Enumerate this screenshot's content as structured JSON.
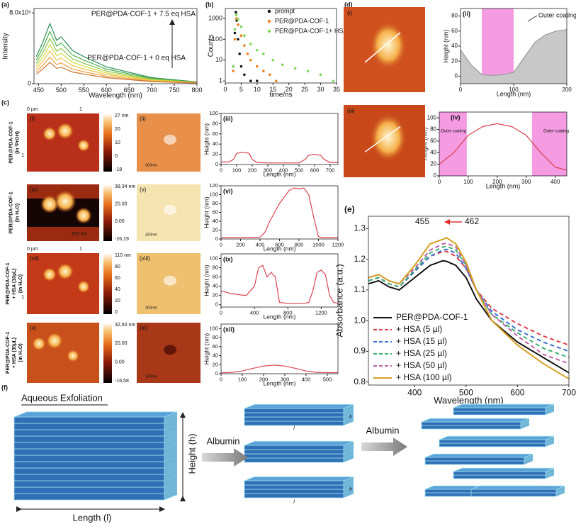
{
  "chart_data": [
    {
      "type": "line",
      "panel": "(a)",
      "xlabel": "Wavelength (nm)",
      "ylabel": "Intensity",
      "xlim": [
        440,
        800
      ],
      "ylim": [
        0,
        850000
      ],
      "xticks": [
        450,
        500,
        550,
        600,
        650,
        700,
        750,
        800
      ],
      "yticks": [
        0,
        {
          "value": 800000,
          "label": "8.0x10⁵"
        }
      ],
      "x": [
        445,
        460,
        475,
        490,
        500,
        525,
        550,
        600,
        700,
        800
      ],
      "series": [
        {
          "color": "#2e8b57",
          "values": [
            306000,
            476000,
            680000,
            490000,
            530000,
            374000,
            306000,
            190000,
            68000,
            20000
          ]
        },
        {
          "color": "#4caf50",
          "values": [
            266000,
            413000,
            590000,
            425000,
            460000,
            325000,
            266000,
            165000,
            59000,
            18000
          ]
        },
        {
          "color": "#8bc34a",
          "values": [
            230000,
            357000,
            510000,
            367000,
            398000,
            281000,
            230000,
            143000,
            51000,
            15000
          ]
        },
        {
          "color": "#cddc39",
          "values": [
            198000,
            308000,
            440000,
            317000,
            343000,
            242000,
            198000,
            123000,
            44000,
            13000
          ]
        },
        {
          "color": "#f0c040",
          "values": [
            167000,
            259000,
            370000,
            266000,
            289000,
            204000,
            167000,
            104000,
            37000,
            11000
          ]
        },
        {
          "color": "#f0a040",
          "values": [
            135000,
            210000,
            300000,
            216000,
            234000,
            165000,
            135000,
            84000,
            30000,
            9000
          ]
        },
        {
          "color": "#c87533",
          "values": [
            108000,
            168000,
            240000,
            173000,
            187000,
            132000,
            108000,
            67000,
            24000,
            7000
          ]
        }
      ],
      "annotations": [
        {
          "text": "PER@PDA-COF-1 + 7.5 eq HSA",
          "color": "#2e8b57"
        },
        {
          "text": "PER@PDA-COF-1 + 0 eq HSA",
          "color": "#c87533"
        }
      ]
    },
    {
      "type": "scatter",
      "panel": "(b)",
      "xlabel": "time/ns",
      "ylabel": "Counts",
      "log_y": true,
      "xlim": [
        0,
        35
      ],
      "ylim": [
        0.8,
        3000
      ],
      "xticks": [
        0,
        5,
        10,
        15,
        20,
        25,
        30,
        35
      ],
      "yticks": [
        1,
        10,
        100,
        1000
      ],
      "legend": true,
      "series": [
        {
          "name": "prompt",
          "color": "#111111",
          "x": [
            2.5,
            3,
            3.3,
            3.6,
            4,
            4.5,
            5,
            6,
            8,
            10
          ],
          "values": [
            5,
            200,
            2000,
            800,
            100,
            20,
            5,
            2,
            1,
            1
          ]
        },
        {
          "name": "PER@PDA-COF-1",
          "color": "#f07f1e",
          "x": [
            2.5,
            3,
            3.5,
            4,
            5,
            6,
            7,
            8,
            10,
            12,
            14,
            16
          ],
          "values": [
            3,
            100,
            1000,
            500,
            150,
            50,
            20,
            10,
            5,
            3,
            2,
            1
          ]
        },
        {
          "name": "PER@PDA-COF-1+ HSA",
          "color": "#7ed957",
          "x": [
            2.5,
            3,
            3.5,
            4,
            5,
            6,
            8,
            10,
            12,
            15,
            18,
            22,
            26,
            30,
            34
          ],
          "values": [
            5,
            300,
            1500,
            900,
            400,
            150,
            60,
            30,
            20,
            10,
            6,
            4,
            3,
            2,
            1
          ]
        }
      ]
    },
    {
      "type": "line",
      "panel": "(iii)",
      "xlabel": "Length (nm)",
      "ylabel": "Height (nm)",
      "xlim": [
        0,
        750
      ],
      "ylim": [
        0,
        100
      ],
      "xticks": [
        0,
        100,
        200,
        300,
        400,
        500,
        600,
        700
      ],
      "yticks": [
        0,
        20,
        40,
        60,
        80,
        100
      ],
      "x": [
        0,
        50,
        80,
        100,
        140,
        180,
        200,
        230,
        300,
        400,
        500,
        540,
        560,
        600,
        640,
        660,
        700,
        750
      ],
      "series": [
        {
          "color": "#d9434f",
          "values": [
            5,
            5,
            10,
            22,
            24,
            22,
            10,
            4,
            3,
            3,
            3,
            10,
            18,
            20,
            18,
            10,
            4,
            4
          ]
        }
      ]
    },
    {
      "type": "line",
      "panel": "(vi)",
      "xlabel": "Length (nm)",
      "ylabel": "Height (nm)",
      "xlim": [
        0,
        1200
      ],
      "ylim": [
        0,
        120
      ],
      "xticks": [
        0,
        200,
        400,
        600,
        800,
        1000,
        1200
      ],
      "yticks": [
        0,
        20,
        40,
        60,
        80,
        100,
        120
      ],
      "x": [
        0,
        200,
        400,
        450,
        500,
        600,
        700,
        750,
        800,
        850,
        900,
        950,
        1000,
        1050,
        1200
      ],
      "series": [
        {
          "color": "#d9434f",
          "values": [
            3,
            3,
            4,
            15,
            40,
            80,
            110,
            115,
            113,
            115,
            100,
            50,
            5,
            3,
            3
          ]
        }
      ]
    },
    {
      "type": "line",
      "panel": "(ix)",
      "xlabel": "Length (nm)",
      "ylabel": "Height (nm)",
      "xlim": [
        0,
        1400
      ],
      "ylim": [
        -5,
        110
      ],
      "xticks": [
        0,
        400,
        800,
        1200
      ],
      "yticks": [
        0,
        20,
        40,
        60,
        80,
        100
      ],
      "x": [
        0,
        100,
        200,
        300,
        400,
        450,
        500,
        550,
        600,
        650,
        700,
        800,
        900,
        1000,
        1050,
        1100,
        1150,
        1200,
        1250,
        1300,
        1350,
        1400
      ],
      "series": [
        {
          "color": "#d9434f",
          "values": [
            30,
            25,
            22,
            20,
            40,
            80,
            85,
            60,
            70,
            60,
            5,
            3,
            3,
            3,
            5,
            30,
            70,
            75,
            65,
            20,
            5,
            3
          ]
        }
      ]
    },
    {
      "type": "line",
      "panel": "(xii)",
      "xlabel": "Length (nm)",
      "ylabel": "Height (nm)",
      "xlim": [
        0,
        550
      ],
      "ylim": [
        0,
        110
      ],
      "xticks": [
        0,
        100,
        200,
        300,
        400,
        500
      ],
      "yticks": [
        0,
        20,
        40,
        60,
        80,
        100
      ],
      "x": [
        0,
        50,
        100,
        150,
        200,
        250,
        300,
        350,
        400,
        450,
        550
      ],
      "series": [
        {
          "color": "#d9434f",
          "values": [
            2,
            3,
            6,
            12,
            17,
            19,
            17,
            12,
            6,
            3,
            2
          ]
        }
      ]
    },
    {
      "type": "line",
      "panel": "(ii)",
      "xlabel": "Length (nm)",
      "ylabel": "Height (nm)",
      "xlim": [
        0,
        200
      ],
      "ylim": [
        -10,
        90
      ],
      "xticks": [
        0,
        100,
        200
      ],
      "yticks": [
        0,
        20,
        40,
        60,
        80
      ],
      "shaded_ranges": [
        [
          40,
          100
        ]
      ],
      "x": [
        0,
        20,
        40,
        60,
        80,
        100,
        120,
        140,
        160,
        180,
        200
      ],
      "series": [
        {
          "color": "#999999",
          "fill": "#c8c8c8",
          "values": [
            35,
            15,
            2,
            1,
            2,
            5,
            25,
            45,
            55,
            60,
            62
          ]
        }
      ],
      "annotations": [
        {
          "text": "Outer coating",
          "color": "#222222"
        }
      ]
    },
    {
      "type": "line",
      "panel": "(iv)",
      "xlabel": "Length (nm)",
      "ylabel": "Height (nm)",
      "xlim": [
        0,
        440
      ],
      "ylim": [
        0,
        110
      ],
      "xticks": [
        0,
        100,
        200,
        300,
        400
      ],
      "yticks": [
        0,
        20,
        40,
        60,
        80,
        100
      ],
      "shaded_ranges": [
        [
          0,
          95
        ],
        [
          320,
          440
        ]
      ],
      "x": [
        0,
        50,
        100,
        150,
        200,
        250,
        300,
        350,
        400,
        440
      ],
      "series": [
        {
          "color": "#d9434f",
          "values": [
            20,
            40,
            70,
            85,
            90,
            85,
            70,
            40,
            15,
            10
          ]
        }
      ],
      "annotations": [
        {
          "text": "Outer coating",
          "color": "#222222"
        },
        {
          "text": "Outer coating",
          "color": "#222222"
        }
      ]
    },
    {
      "type": "line",
      "panel": "(e)",
      "xlabel": "Wavelength (nm)",
      "ylabel": "Absorbance (a.u.)",
      "legend": true,
      "xlim": [
        310,
        700
      ],
      "ylim": [
        0.79,
        1.34
      ],
      "xticks": [
        400,
        500,
        600,
        700
      ],
      "yticks": [
        0.8,
        0.9,
        {
          "value": 1,
          "label": "1.0"
        },
        1.1,
        1.2,
        1.3
      ],
      "x": [
        310,
        330,
        350,
        370,
        400,
        430,
        455,
        462,
        480,
        500,
        520,
        550,
        600,
        650,
        700
      ],
      "series": [
        {
          "name": "PER@PDA-COF-1",
          "color": "#111111",
          "values": [
            1.12,
            1.13,
            1.11,
            1.1,
            1.14,
            1.18,
            1.195,
            1.193,
            1.18,
            1.14,
            1.07,
            1.0,
            0.93,
            0.88,
            0.83
          ]
        },
        {
          "name": "+ HSA (5 µl)",
          "color": "#e0404a",
          "dash": true,
          "values": [
            1.13,
            1.14,
            1.12,
            1.11,
            1.16,
            1.21,
            1.225,
            1.225,
            1.21,
            1.17,
            1.1,
            1.04,
            0.99,
            0.95,
            0.92
          ]
        },
        {
          "name": "+ HSA (15 µl)",
          "color": "#3a6fd0",
          "dash": true,
          "values": [
            1.13,
            1.14,
            1.12,
            1.11,
            1.16,
            1.21,
            1.23,
            1.232,
            1.22,
            1.17,
            1.1,
            1.03,
            0.97,
            0.93,
            0.9
          ]
        },
        {
          "name": "+ HSA (25 µl)",
          "color": "#3cb371",
          "dash": true,
          "values": [
            1.13,
            1.14,
            1.12,
            1.11,
            1.165,
            1.22,
            1.24,
            1.242,
            1.23,
            1.18,
            1.1,
            1.02,
            0.96,
            0.91,
            0.88
          ]
        },
        {
          "name": "+ HSA (50 µl)",
          "color": "#c060a8",
          "dash": true,
          "values": [
            1.14,
            1.15,
            1.13,
            1.12,
            1.17,
            1.23,
            1.25,
            1.252,
            1.24,
            1.18,
            1.1,
            1.02,
            0.95,
            0.89,
            0.86
          ]
        },
        {
          "name": "+ HSA (100 µl)",
          "color": "#d4a020",
          "values": [
            1.14,
            1.15,
            1.13,
            1.12,
            1.18,
            1.25,
            1.265,
            1.27,
            1.25,
            1.19,
            1.1,
            1.0,
            0.92,
            0.86,
            0.81
          ]
        }
      ],
      "annotations": [
        {
          "text": "455",
          "color": "#111111"
        },
        {
          "text": "462",
          "color": "#111111"
        }
      ]
    }
  ],
  "figure": {
    "panel_letters": {
      "c": "(c)",
      "d": "(d)",
      "f": "(f)"
    },
    "afm_rows": [
      {
        "label": [
          "PER@PDA-COF-1",
          "(in ⁱPrOH)"
        ],
        "images": [
          "(i)",
          "(ii)"
        ],
        "colorbar": [
          "27 nm",
          "20",
          "10",
          "0",
          "-18"
        ],
        "axis": [
          "0 µm",
          "1",
          "1"
        ],
        "scale_bar": "300nm"
      },
      {
        "label": [
          "PER@PDA-COF-1",
          "(in H₂O)"
        ],
        "images": [
          "(iv)",
          "(v)"
        ],
        "colorbar": [
          "38,34 nm",
          "20,00",
          "0,00",
          "-26,19"
        ],
        "scale_bar_left": "500 nm",
        "scale_bar": "420nm"
      },
      {
        "label": [
          "PER@PDA-COF-1",
          "+ HSA (10µL)",
          "(in H₂O)"
        ],
        "images": [
          "(vii)",
          "(viii)"
        ],
        "colorbar": [
          "110 nm",
          "80",
          "60",
          "40",
          "20",
          "0"
        ],
        "axis": [
          "0 µm",
          "1",
          "1"
        ],
        "scale_bar": "300nm"
      },
      {
        "label": [
          "PER@PDA-COF-1",
          "+ HSA (30µL)",
          "(in H₂O)"
        ],
        "images": [
          "(x)",
          "(xi)"
        ],
        "colorbar": [
          "32,60 nm",
          "20,00",
          "0,00",
          "-16,58"
        ],
        "scale_bar": "190nm"
      }
    ],
    "d_images": [
      "(i)",
      "(iii)"
    ],
    "schematic": {
      "title": "Aqueous Exfoliation",
      "height": "Height (h)",
      "length": "Length (l)",
      "arrows": [
        "Albumin",
        "Albumin"
      ],
      "small_labels": [
        "h",
        "l",
        "h",
        "l"
      ]
    }
  }
}
